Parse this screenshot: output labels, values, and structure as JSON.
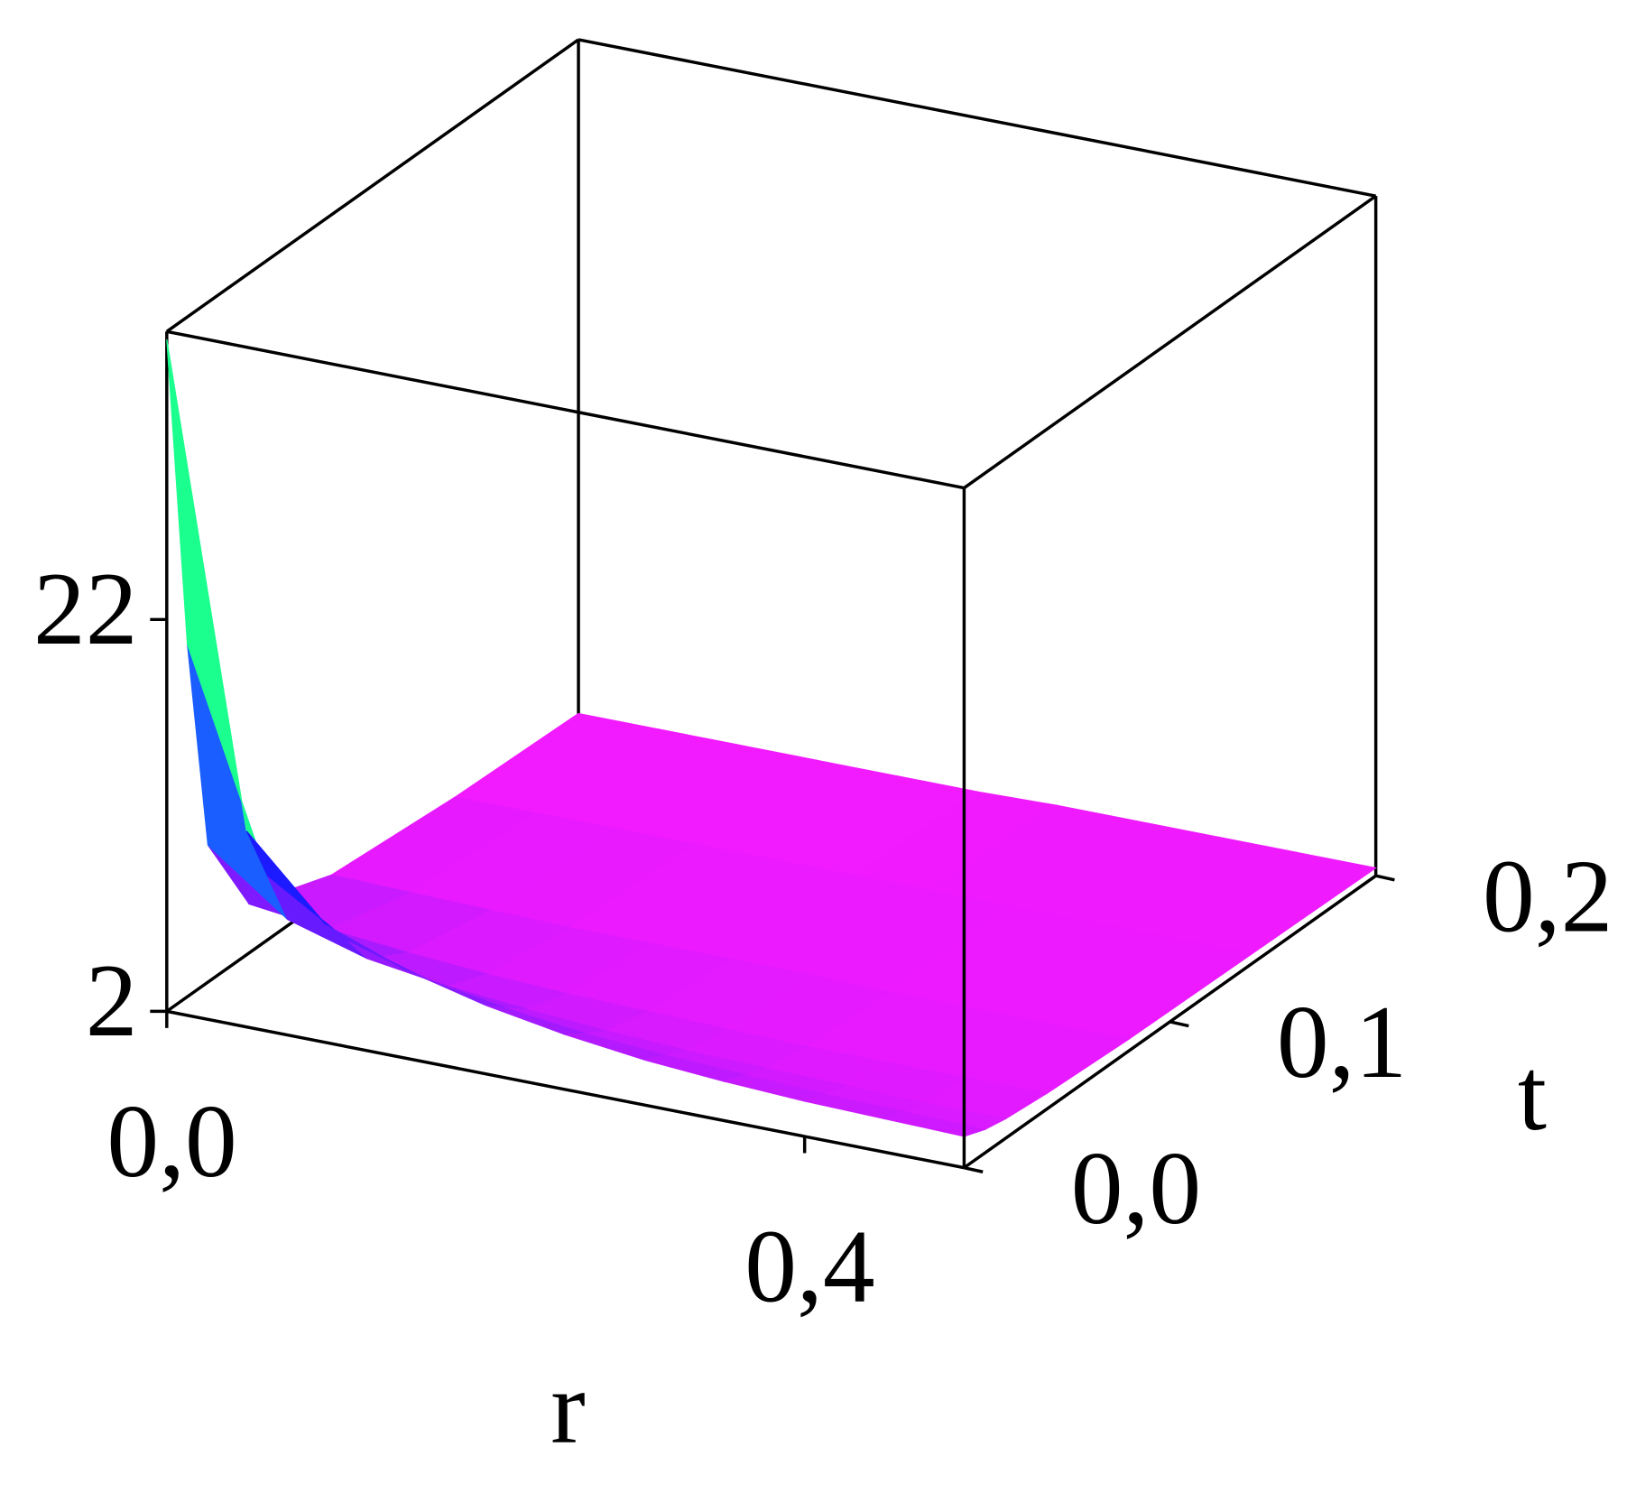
{
  "chart_data": {
    "type": "surface",
    "xlabel": "r",
    "ylabel": "t",
    "x": [
      0,
      0.05,
      0.1,
      0.15,
      0.2,
      0.25,
      0.3,
      0.35,
      0.4,
      0.45,
      0.5
    ],
    "y": [
      0,
      0.01,
      0.02,
      0.04,
      0.08,
      0.14,
      0.2
    ],
    "values": [
      [
        36.3,
        12,
        8,
        6.5,
        5.5,
        4.8,
        4.3,
        4,
        3.8,
        3.7,
        3.6
      ],
      [
        20,
        9,
        6.5,
        5.3,
        4.6,
        4.1,
        3.8,
        3.6,
        3.4,
        3.3,
        3.2
      ],
      [
        9,
        6,
        4.8,
        4.2,
        3.8,
        3.5,
        3.3,
        3.2,
        3.1,
        3,
        3
      ],
      [
        4.5,
        4,
        3.6,
        3.3,
        3.1,
        3,
        2.9,
        2.8,
        2.8,
        2.8,
        2.8
      ],
      [
        3,
        2.9,
        2.8,
        2.7,
        2.7,
        2.7,
        2.7,
        2.6,
        2.6,
        2.6,
        2.6
      ],
      [
        2.5,
        2.5,
        2.5,
        2.5,
        2.5,
        2.5,
        2.5,
        2.5,
        2.5,
        2.5,
        2.5
      ],
      [
        2.3,
        2.3,
        2.3,
        2.3,
        2.3,
        2.3,
        2.4,
        2.4,
        2.4,
        2.4,
        2.4
      ]
    ],
    "xlim": [
      0,
      0.5
    ],
    "ylim": [
      0,
      0.2
    ],
    "zlim": [
      2,
      36.7
    ],
    "xticks": [
      {
        "value": 0,
        "label": "0,0"
      },
      {
        "value": 0.4,
        "label": "0,4"
      }
    ],
    "yticks": [
      {
        "value": 0,
        "label": "0,0"
      },
      {
        "value": 0.1,
        "label": "0,1"
      },
      {
        "value": 0.2,
        "label": "0,2"
      }
    ],
    "zticks": [
      2,
      22
    ]
  }
}
